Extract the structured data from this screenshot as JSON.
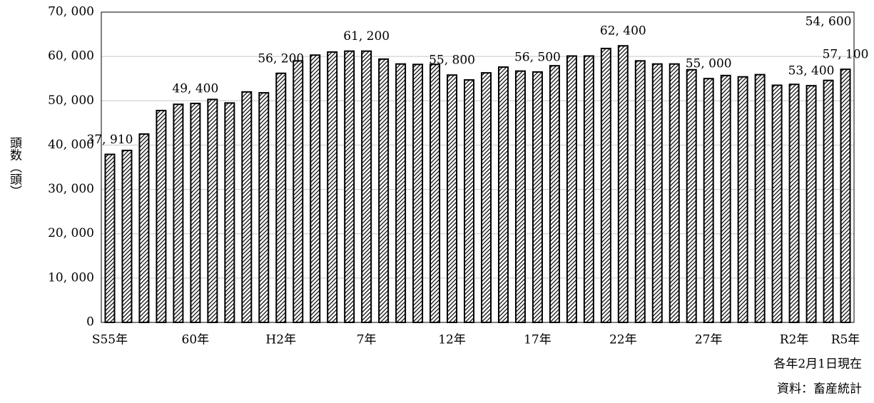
{
  "chart_data": {
    "type": "bar",
    "y_label": "頭数（頭）",
    "notes": [
      "各年2月1日現在",
      "資料：畜産統計"
    ],
    "categories": [
      "S55年",
      null,
      null,
      null,
      null,
      "60年",
      null,
      null,
      null,
      null,
      "H2年",
      null,
      null,
      null,
      null,
      "7年",
      null,
      null,
      null,
      null,
      "12年",
      null,
      null,
      null,
      null,
      "17年",
      null,
      null,
      null,
      null,
      "22年",
      null,
      null,
      null,
      null,
      "27年",
      null,
      null,
      null,
      null,
      "R2年",
      null,
      null,
      "R5年"
    ],
    "values": [
      37910,
      38800,
      42500,
      47800,
      49200,
      49400,
      50300,
      49500,
      52000,
      51800,
      56200,
      59000,
      60300,
      61000,
      61200,
      61200,
      59400,
      58300,
      58200,
      58200,
      55800,
      54700,
      56300,
      57600,
      56700,
      56500,
      57900,
      60100,
      60100,
      61800,
      62400,
      59000,
      58300,
      58300,
      57000,
      55000,
      55700,
      55400,
      55900,
      53500,
      53700,
      53400,
      54600,
      57100
    ],
    "value_labels": [
      "37, 910",
      null,
      null,
      null,
      null,
      "49, 400",
      null,
      null,
      null,
      null,
      "56, 200",
      null,
      null,
      null,
      null,
      "61, 200",
      null,
      null,
      null,
      null,
      "55, 800",
      null,
      null,
      null,
      null,
      "56, 500",
      null,
      null,
      null,
      null,
      "62, 400",
      null,
      null,
      null,
      null,
      "55, 000",
      null,
      null,
      null,
      null,
      null,
      "53, 400",
      "54, 600",
      "57, 100"
    ],
    "color": "#000000",
    "ylim": [
      0,
      70000
    ],
    "yticks": [
      0,
      {
        "value": 10000,
        "label": "10, 000"
      },
      {
        "value": 20000,
        "label": "20, 000"
      },
      {
        "value": 30000,
        "label": "30, 000"
      },
      {
        "value": 40000,
        "label": "40, 000"
      },
      {
        "value": 50000,
        "label": "50, 000"
      },
      {
        "value": 60000,
        "label": "60, 000"
      },
      {
        "value": 70000,
        "label": "70, 000"
      }
    ],
    "grid": true
  }
}
